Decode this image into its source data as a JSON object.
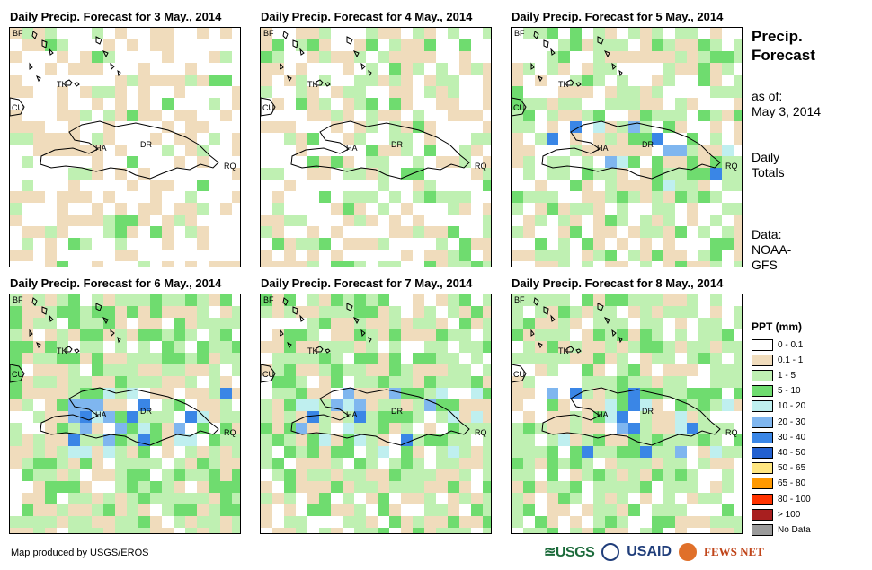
{
  "panels": [
    {
      "title": "Daily Precip. Forecast for 3 May., 2014",
      "wet": 0.12,
      "heavy": 0.0,
      "seed": 3
    },
    {
      "title": "Daily Precip. Forecast for 4 May., 2014",
      "wet": 0.2,
      "heavy": 0.0,
      "seed": 4
    },
    {
      "title": "Daily Precip. Forecast for 5 May., 2014",
      "wet": 0.35,
      "heavy": 0.12,
      "seed": 5
    },
    {
      "title": "Daily Precip. Forecast for 6 May., 2014",
      "wet": 0.5,
      "heavy": 0.25,
      "seed": 6
    },
    {
      "title": "Daily Precip. Forecast for 7 May., 2014",
      "wet": 0.45,
      "heavy": 0.22,
      "seed": 7
    },
    {
      "title": "Daily Precip. Forecast for 8 May., 2014",
      "wet": 0.42,
      "heavy": 0.15,
      "seed": 8
    }
  ],
  "map_labels": {
    "bf": "BF",
    "tk": "TK",
    "cu": "CU",
    "ha": "HA",
    "dr": "DR",
    "rq": "RQ"
  },
  "side": {
    "title_line1": "Precip.",
    "title_line2": "Forecast",
    "asof_line1": "as of:",
    "asof_line2": "May 3, 2014",
    "daily_line1": "Daily",
    "daily_line2": "Totals",
    "data_line1": "Data:",
    "data_line2": "NOAA-",
    "data_line3": "GFS"
  },
  "legend": {
    "title": "PPT (mm)",
    "items": [
      {
        "label": "0 - 0.1",
        "color": "#ffffff"
      },
      {
        "label": "0.1 - 1",
        "color": "#f0dcbc"
      },
      {
        "label": "1 - 5",
        "color": "#bff0b2"
      },
      {
        "label": "5 - 10",
        "color": "#6fdc6f"
      },
      {
        "label": "10 - 20",
        "color": "#bfefef"
      },
      {
        "label": "20 - 30",
        "color": "#7fb6ef"
      },
      {
        "label": "30 - 40",
        "color": "#3a86e6"
      },
      {
        "label": "40 - 50",
        "color": "#2260d0"
      },
      {
        "label": "50 - 65",
        "color": "#ffe680"
      },
      {
        "label": "65 - 80",
        "color": "#ff9900"
      },
      {
        "label": "80 - 100",
        "color": "#ff3300"
      },
      {
        "label": "> 100",
        "color": "#a81f1f"
      },
      {
        "label": "No Data",
        "color": "#9a9a9a"
      }
    ]
  },
  "credit": "Map produced by USGS/EROS",
  "logos": {
    "usgs": "≊USGS",
    "usaid": "USAID",
    "fews": "FEWS NET"
  }
}
